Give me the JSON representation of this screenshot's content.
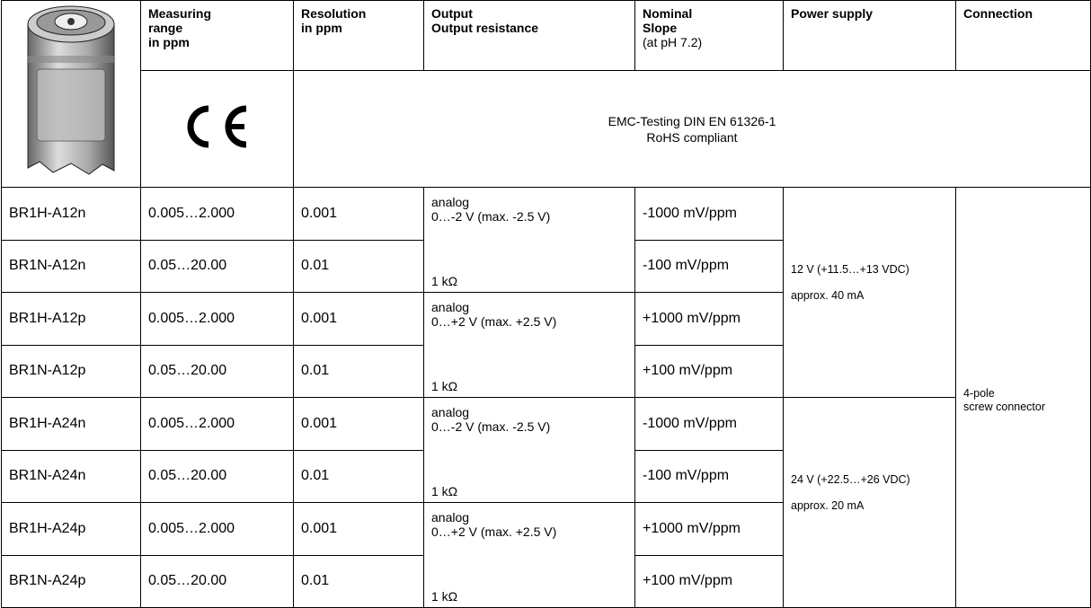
{
  "header": {
    "measuring_range": [
      "Measuring",
      "range",
      "in ppm"
    ],
    "resolution": [
      "Resolution",
      "in ppm"
    ],
    "output": [
      "Output",
      "Output resistance"
    ],
    "slope": {
      "title": [
        "Nominal",
        "Slope"
      ],
      "note": "(at pH 7.2)"
    },
    "power_supply": "Power supply",
    "connection": "Connection"
  },
  "compliance": [
    "EMC-Testing DIN EN 61326-1",
    "RoHS compliant"
  ],
  "rows": [
    [
      "BR1H-A12n",
      "0.005…2.000",
      "0.001",
      "-1000 mV/ppm"
    ],
    [
      "BR1N-A12n",
      "0.05…20.00",
      "0.01",
      "-100 mV/ppm"
    ],
    [
      "BR1H-A12p",
      "0.005…2.000",
      "0.001",
      "+1000 mV/ppm"
    ],
    [
      "BR1N-A12p",
      "0.05…20.00",
      "0.01",
      "+100 mV/ppm"
    ],
    [
      "BR1H-A24n",
      "0.005…2.000",
      "0.001",
      "-1000 mV/ppm"
    ],
    [
      "BR1N-A24n",
      "0.05…20.00",
      "0.01",
      "-100 mV/ppm"
    ],
    [
      "BR1H-A24p",
      "0.005…2.000",
      "0.001",
      "+1000 mV/ppm"
    ],
    [
      "BR1N-A24p",
      "0.05…20.00",
      "0.01",
      "+100 mV/ppm"
    ]
  ],
  "outputs": [
    {
      "type": "analog",
      "range": "0…-2 V (max. -2.5 V)",
      "resistance": "1 kΩ"
    },
    {
      "type": "analog",
      "range": "0…+2 V (max. +2.5 V)",
      "resistance": "1 kΩ"
    },
    {
      "type": "analog",
      "range": "0…-2 V (max. -2.5 V)",
      "resistance": "1 kΩ"
    },
    {
      "type": "analog",
      "range": "0…+2 V (max. +2.5 V)",
      "resistance": "1 kΩ"
    }
  ],
  "power": [
    {
      "voltage": "12 V (+11.5…+13 VDC)",
      "current": "approx. 40 mA"
    },
    {
      "voltage": "24 V (+22.5…+26 VDC)",
      "current": "approx. 20 mA"
    }
  ],
  "connection": [
    "4-pole",
    "screw connector"
  ]
}
